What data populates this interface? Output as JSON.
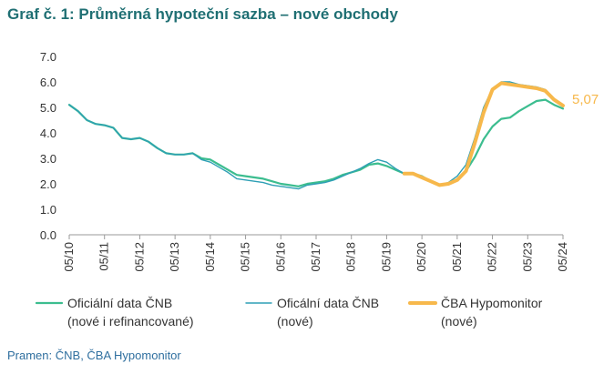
{
  "title": "Graf č. 1: Průměrná hypoteční sazba – nové obchody",
  "source": "Pramen: ČNB, ČBA Hypomonitor",
  "chart_data": {
    "type": "line",
    "title": "Graf č. 1: Průměrná hypoteční sazba – nové obchody",
    "ylim": [
      0,
      7
    ],
    "yticks": [
      "0.0",
      "1.0",
      "2.0",
      "3.0",
      "4.0",
      "5.0",
      "6.0",
      "7.0"
    ],
    "xtick_labels": [
      "05/10",
      "05/11",
      "05/12",
      "05/13",
      "05/14",
      "05/15",
      "05/16",
      "05/17",
      "05/18",
      "05/19",
      "05/20",
      "05/21",
      "05/22",
      "05/23",
      "05/24"
    ],
    "grid": false,
    "legend_position": "bottom",
    "series": [
      {
        "name": "Oficiální data ČNB (nové i refinancované)",
        "color": "#3cbd8f",
        "x": [
          "2010-05",
          "2010-08",
          "2010-11",
          "2011-02",
          "2011-05",
          "2011-08",
          "2011-11",
          "2012-02",
          "2012-05",
          "2012-08",
          "2012-11",
          "2013-02",
          "2013-05",
          "2013-08",
          "2013-11",
          "2014-02",
          "2014-05",
          "2014-08",
          "2014-11",
          "2015-02",
          "2015-05",
          "2015-08",
          "2015-11",
          "2016-02",
          "2016-05",
          "2016-08",
          "2016-11",
          "2017-02",
          "2017-05",
          "2017-08",
          "2017-11",
          "2018-02",
          "2018-05",
          "2018-08",
          "2018-11",
          "2019-02",
          "2019-05",
          "2019-08",
          "2019-11",
          "2020-02",
          "2020-05",
          "2020-08",
          "2020-11",
          "2021-02",
          "2021-05",
          "2021-08",
          "2021-11",
          "2022-02",
          "2022-05",
          "2022-08",
          "2022-11",
          "2023-02",
          "2023-05",
          "2023-08",
          "2023-11",
          "2024-02",
          "2024-05"
        ],
        "values": [
          5.1,
          4.85,
          4.5,
          4.35,
          4.3,
          4.2,
          3.8,
          3.75,
          3.8,
          3.65,
          3.4,
          3.2,
          3.15,
          3.15,
          3.2,
          3.0,
          2.95,
          2.75,
          2.55,
          2.35,
          2.3,
          2.25,
          2.2,
          2.1,
          2.0,
          1.95,
          1.9,
          2.0,
          2.05,
          2.1,
          2.2,
          2.35,
          2.45,
          2.55,
          2.75,
          2.8,
          2.7,
          2.55,
          2.4,
          2.4,
          2.3,
          2.1,
          1.95,
          2.0,
          2.15,
          2.5,
          3.05,
          3.75,
          4.25,
          4.55,
          4.6,
          4.85,
          5.05,
          5.25,
          5.3,
          5.1,
          4.95
        ]
      },
      {
        "name": "Oficální data ČNB (nové)",
        "color": "#2e9fb5",
        "x": [
          "2010-05",
          "2010-08",
          "2010-11",
          "2011-02",
          "2011-05",
          "2011-08",
          "2011-11",
          "2012-02",
          "2012-05",
          "2012-08",
          "2012-11",
          "2013-02",
          "2013-05",
          "2013-08",
          "2013-11",
          "2014-02",
          "2014-05",
          "2014-08",
          "2014-11",
          "2015-02",
          "2015-05",
          "2015-08",
          "2015-11",
          "2016-02",
          "2016-05",
          "2016-08",
          "2016-11",
          "2017-02",
          "2017-05",
          "2017-08",
          "2017-11",
          "2018-02",
          "2018-05",
          "2018-08",
          "2018-11",
          "2019-02",
          "2019-05",
          "2019-08",
          "2019-11",
          "2020-02",
          "2020-05",
          "2020-08",
          "2020-11",
          "2021-02",
          "2021-05",
          "2021-08",
          "2021-11",
          "2022-02",
          "2022-05",
          "2022-08",
          "2022-11",
          "2023-02",
          "2023-05",
          "2023-08",
          "2023-11",
          "2024-02",
          "2024-05"
        ],
        "values": [
          5.1,
          4.85,
          4.5,
          4.35,
          4.3,
          4.2,
          3.8,
          3.75,
          3.8,
          3.65,
          3.4,
          3.2,
          3.15,
          3.15,
          3.2,
          2.95,
          2.85,
          2.65,
          2.45,
          2.2,
          2.15,
          2.1,
          2.05,
          1.95,
          1.9,
          1.85,
          1.8,
          1.95,
          2.0,
          2.05,
          2.15,
          2.3,
          2.45,
          2.6,
          2.8,
          2.95,
          2.85,
          2.6,
          2.4,
          2.4,
          2.3,
          2.1,
          1.95,
          2.05,
          2.3,
          2.75,
          3.8,
          5.0,
          5.75,
          6.0,
          6.0,
          5.9,
          5.85,
          5.8,
          5.7,
          5.3,
          5.05
        ]
      },
      {
        "name": "ČBA Hypomonitor (nové)",
        "color": "#f7b84b",
        "x": [
          "2019-11",
          "2020-02",
          "2020-05",
          "2020-08",
          "2020-11",
          "2021-02",
          "2021-05",
          "2021-08",
          "2021-11",
          "2022-02",
          "2022-05",
          "2022-08",
          "2022-11",
          "2023-02",
          "2023-05",
          "2023-08",
          "2023-11",
          "2024-02",
          "2024-05"
        ],
        "values": [
          2.4,
          2.4,
          2.25,
          2.1,
          1.95,
          2.0,
          2.15,
          2.5,
          3.6,
          4.8,
          5.7,
          5.95,
          5.9,
          5.85,
          5.8,
          5.75,
          5.65,
          5.3,
          5.07
        ]
      }
    ],
    "annotations": [
      {
        "text": "5,07",
        "series": 2,
        "point": "last"
      }
    ]
  }
}
